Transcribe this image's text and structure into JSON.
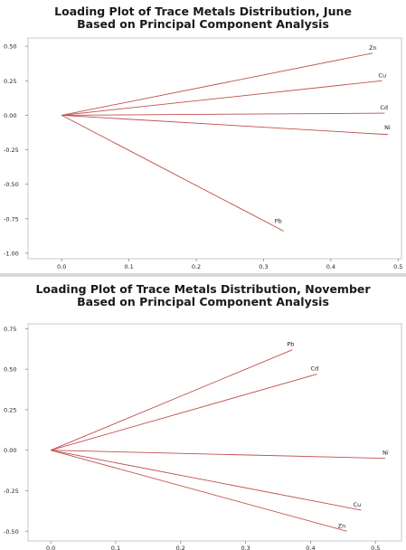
{
  "chart_data": [
    {
      "type": "line",
      "title": "Loading Plot of Trace Metals Distribution, June",
      "subtitle": "Based on Principal Component Analysis",
      "xlim": [
        -0.05,
        0.505
      ],
      "ylim": [
        -1.04,
        0.56
      ],
      "x_ticks": [
        0.0,
        0.1,
        0.2,
        0.3,
        0.4,
        0.5
      ],
      "x_tick_labels": [
        "0.0",
        "0.1",
        "0.2",
        "0.3",
        "0.4",
        "0.5"
      ],
      "y_ticks": [
        0.5,
        0.25,
        0.0,
        -0.25,
        -0.5,
        -0.75,
        -1.0
      ],
      "y_tick_labels": [
        "0.50",
        "0.25",
        "0.00",
        "-0.25",
        "-0.50",
        "-0.75",
        "-1.00"
      ],
      "series_color": "#c0504d",
      "series": [
        {
          "name": "Zn",
          "x": [
            0.0,
            0.462
          ],
          "y": [
            0.0,
            0.45
          ]
        },
        {
          "name": "Cu",
          "x": [
            0.0,
            0.476
          ],
          "y": [
            0.0,
            0.25
          ]
        },
        {
          "name": "Cd",
          "x": [
            0.0,
            0.48
          ],
          "y": [
            0.0,
            0.015
          ]
        },
        {
          "name": "Ni",
          "x": [
            0.0,
            0.485
          ],
          "y": [
            0.0,
            -0.14
          ]
        },
        {
          "name": "Pb",
          "x": [
            0.0,
            0.33
          ],
          "y": [
            0.0,
            -0.84
          ]
        }
      ]
    },
    {
      "type": "line",
      "title": "Loading Plot of Trace Metals Distribution, November",
      "subtitle": "Based on Principal Component Analysis",
      "xlim": [
        -0.035,
        0.54
      ],
      "ylim": [
        -0.56,
        0.78
      ],
      "x_ticks": [
        0.0,
        0.1,
        0.2,
        0.3,
        0.4,
        0.5
      ],
      "x_tick_labels": [
        "0.0",
        "0.1",
        "0.2",
        "0.3",
        "0.4",
        "0.5"
      ],
      "y_ticks": [
        0.75,
        0.5,
        0.25,
        0.0,
        -0.25,
        -0.5
      ],
      "y_tick_labels": [
        "0.75",
        "0.50",
        "0.25",
        "0.00",
        "-0.25",
        "-0.50"
      ],
      "series_color": "#c0504d",
      "series": [
        {
          "name": "Pb",
          "x": [
            0.0,
            0.372
          ],
          "y": [
            0.0,
            0.62
          ]
        },
        {
          "name": "Cd",
          "x": [
            0.0,
            0.41
          ],
          "y": [
            0.0,
            0.47
          ]
        },
        {
          "name": "Ni",
          "x": [
            0.0,
            0.515
          ],
          "y": [
            0.0,
            -0.05
          ]
        },
        {
          "name": "Cu",
          "x": [
            0.0,
            0.478
          ],
          "y": [
            0.0,
            -0.37
          ]
        },
        {
          "name": "Zn",
          "x": [
            0.0,
            0.456
          ],
          "y": [
            0.0,
            -0.5
          ]
        }
      ]
    }
  ]
}
